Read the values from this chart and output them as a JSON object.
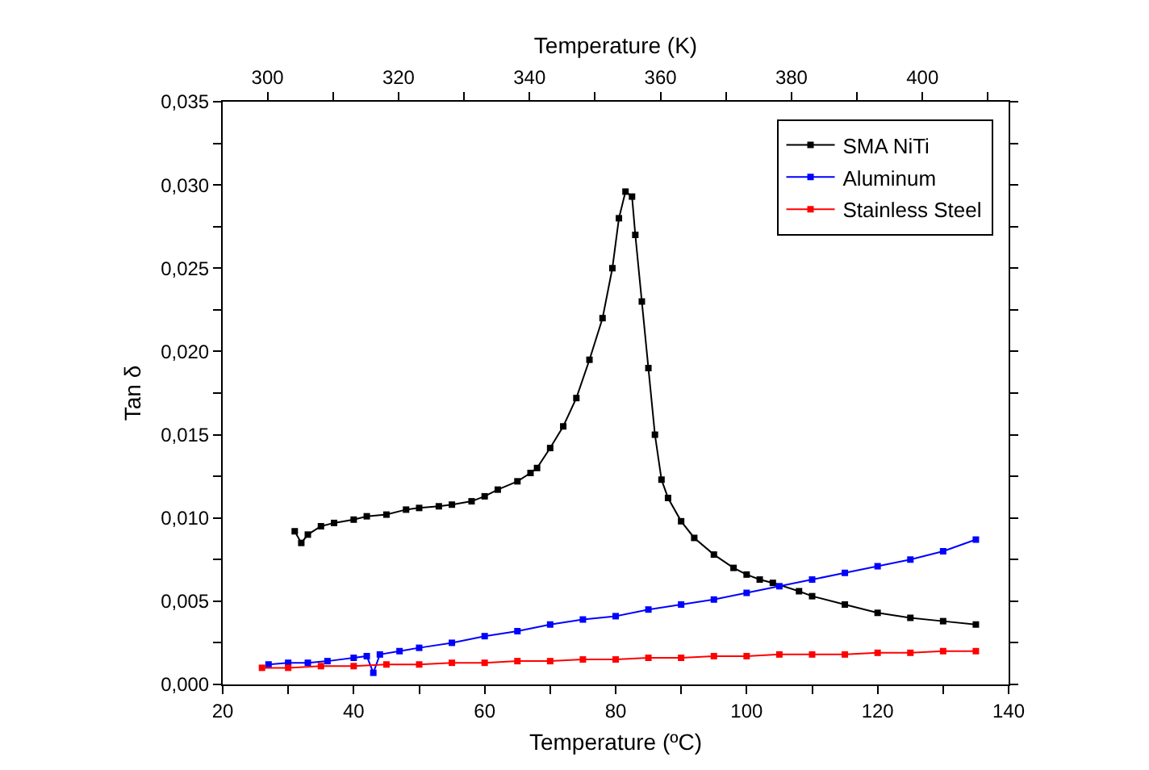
{
  "chart_data": {
    "type": "line",
    "xlabel": "Temperature (ºC)",
    "ylabel": "Tan δ",
    "x2label": "Temperature (K)",
    "xlim": [
      20,
      140
    ],
    "xticks": [
      20,
      {
        "value": 30,
        "label": null
      },
      40,
      {
        "value": 50,
        "label": null
      },
      60,
      {
        "value": 70,
        "label": null
      },
      80,
      {
        "value": 90,
        "label": null
      },
      100,
      {
        "value": 110,
        "label": null
      },
      120,
      {
        "value": 130,
        "label": null
      },
      140
    ],
    "x2lim": [
      293.15,
      413.15
    ],
    "x2ticks": [
      300,
      {
        "value": 310,
        "label": null
      },
      320,
      {
        "value": 330,
        "label": null
      },
      340,
      {
        "value": 350,
        "label": null
      },
      360,
      {
        "value": 370,
        "label": null
      },
      380,
      {
        "value": 390,
        "label": null
      },
      400,
      {
        "value": 410,
        "label": null
      }
    ],
    "ylim": [
      0,
      0.035
    ],
    "yticks": [
      {
        "value": 0,
        "label": "0,000"
      },
      {
        "value": 0.0025,
        "label": null
      },
      {
        "value": 0.005,
        "label": "0,005"
      },
      {
        "value": 0.0075,
        "label": null
      },
      {
        "value": 0.01,
        "label": "0,010"
      },
      {
        "value": 0.0125,
        "label": null
      },
      {
        "value": 0.015,
        "label": "0,015"
      },
      {
        "value": 0.0175,
        "label": null
      },
      {
        "value": 0.02,
        "label": "0,020"
      },
      {
        "value": 0.0225,
        "label": null
      },
      {
        "value": 0.025,
        "label": "0,025"
      },
      {
        "value": 0.0275,
        "label": null
      },
      {
        "value": 0.03,
        "label": "0,030"
      },
      {
        "value": 0.0325,
        "label": null
      },
      {
        "value": 0.035,
        "label": "0,035"
      }
    ],
    "legend": "top right",
    "marker": "square",
    "line_style": "solid",
    "series": [
      {
        "name": "SMA NiTi",
        "color": "#000000",
        "x": [
          31,
          32,
          33,
          35,
          37,
          40,
          42,
          45,
          48,
          50,
          53,
          55,
          58,
          60,
          62,
          65,
          67,
          68,
          70,
          72,
          74,
          76,
          78,
          79.5,
          80.5,
          81.5,
          82.5,
          83,
          84,
          85,
          86,
          87,
          88,
          90,
          92,
          95,
          98,
          100,
          102,
          104,
          108,
          110,
          115,
          120,
          125,
          130,
          135
        ],
        "values": [
          0.0092,
          0.0085,
          0.009,
          0.0095,
          0.0097,
          0.0099,
          0.0101,
          0.0102,
          0.0105,
          0.0106,
          0.0107,
          0.0108,
          0.011,
          0.0113,
          0.0117,
          0.0122,
          0.0127,
          0.013,
          0.0142,
          0.0155,
          0.0172,
          0.0195,
          0.022,
          0.025,
          0.028,
          0.0296,
          0.0293,
          0.027,
          0.023,
          0.019,
          0.015,
          0.0123,
          0.0112,
          0.0098,
          0.0088,
          0.0078,
          0.007,
          0.0066,
          0.0063,
          0.0061,
          0.0056,
          0.0053,
          0.0048,
          0.0043,
          0.004,
          0.0038,
          0.0036
        ]
      },
      {
        "name": "Aluminum",
        "color": "#0000ff",
        "x": [
          27,
          30,
          33,
          36,
          40,
          42,
          43,
          44,
          47,
          50,
          55,
          60,
          65,
          70,
          75,
          80,
          85,
          90,
          95,
          100,
          105,
          110,
          115,
          120,
          125,
          130,
          135
        ],
        "values": [
          0.0012,
          0.0013,
          0.0013,
          0.0014,
          0.0016,
          0.0017,
          0.0007,
          0.0018,
          0.002,
          0.0022,
          0.0025,
          0.0029,
          0.0032,
          0.0036,
          0.0039,
          0.0041,
          0.0045,
          0.0048,
          0.0051,
          0.0055,
          0.0059,
          0.0063,
          0.0067,
          0.0071,
          0.0075,
          0.008,
          0.0087
        ]
      },
      {
        "name": "Stainless Steel",
        "color": "#ff0000",
        "x": [
          26,
          30,
          35,
          40,
          45,
          50,
          55,
          60,
          65,
          70,
          75,
          80,
          85,
          90,
          95,
          100,
          105,
          110,
          115,
          120,
          125,
          130,
          135
        ],
        "values": [
          0.001,
          0.001,
          0.0011,
          0.0011,
          0.0012,
          0.0012,
          0.0013,
          0.0013,
          0.0014,
          0.0014,
          0.0015,
          0.0015,
          0.0016,
          0.0016,
          0.0017,
          0.0017,
          0.0018,
          0.0018,
          0.0018,
          0.0019,
          0.0019,
          0.002,
          0.002
        ]
      }
    ]
  }
}
